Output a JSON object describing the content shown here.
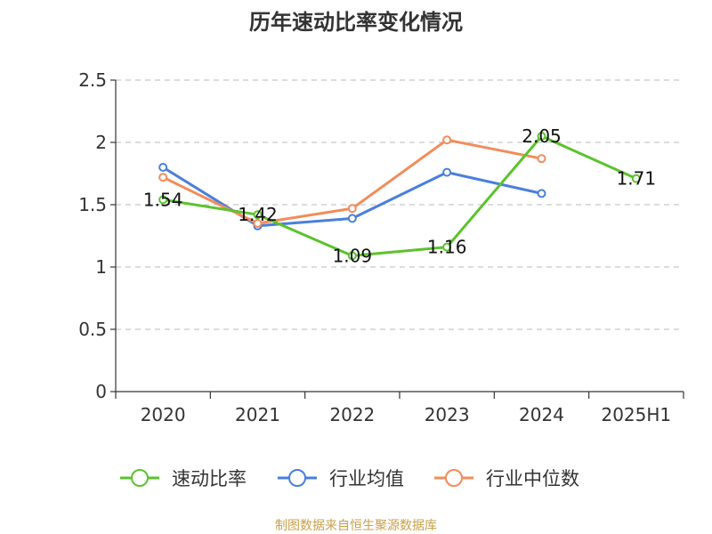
{
  "chart_data": {
    "type": "line",
    "title": "历年速动比率变化情况",
    "categories": [
      "2020",
      "2021",
      "2022",
      "2023",
      "2024",
      "2025H1"
    ],
    "ylim": [
      0,
      2.5
    ],
    "yticks": [
      "0",
      "0.5",
      "1",
      "1.5",
      "2",
      "2.5"
    ],
    "ytick_values": [
      0,
      0.5,
      1,
      1.5,
      2,
      2.5
    ],
    "grid": true,
    "legend_position": "bottom",
    "series": [
      {
        "name": "速动比率",
        "color": "#5cc22e",
        "values": [
          1.54,
          1.42,
          1.09,
          1.16,
          2.05,
          1.71
        ],
        "labels": [
          "1.54",
          "1.42",
          "1.09",
          "1.16",
          "2.05",
          "1.71"
        ]
      },
      {
        "name": "行业均值",
        "color": "#4a7fdc",
        "values": [
          1.8,
          1.33,
          1.39,
          1.76,
          1.59,
          null
        ]
      },
      {
        "name": "行业中位数",
        "color": "#f28c5a",
        "values": [
          1.72,
          1.35,
          1.47,
          2.02,
          1.87,
          null
        ]
      }
    ]
  },
  "source": "制图数据来自恒生聚源数据库"
}
